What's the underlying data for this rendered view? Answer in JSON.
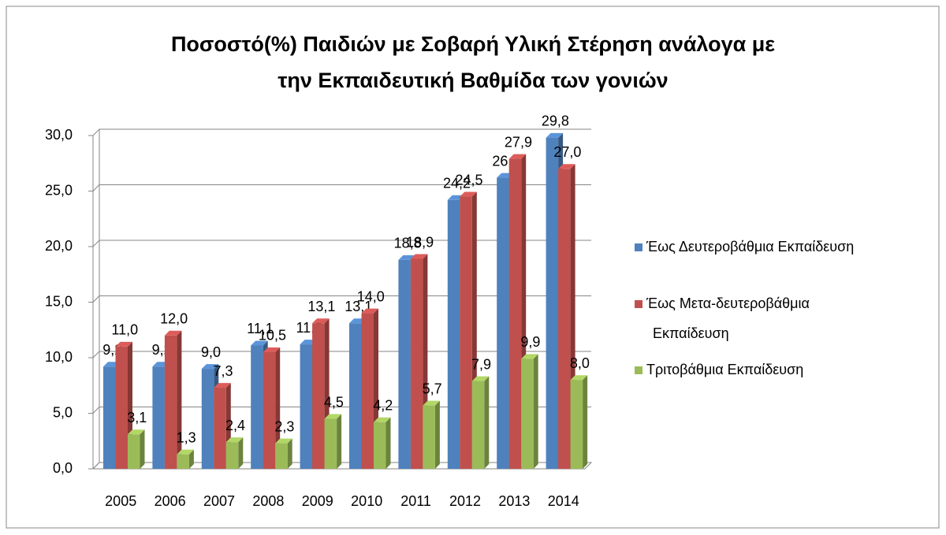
{
  "chart_data": {
    "type": "bar3d",
    "title": "Ποσοστό(%) Παιδιών με Σοβαρή Υλική Στέρηση ανάλογα με την Εκπαιδευτική Βαθμίδα των γονιών",
    "categories": [
      "2005",
      "2006",
      "2007",
      "2008",
      "2009",
      "2010",
      "2011",
      "2012",
      "2013",
      "2014"
    ],
    "series": [
      {
        "name": "Έως Δευτεροβάθμια Εκπαίδευση",
        "color": "#4f81bd",
        "values": [
          9.2,
          9.2,
          9.0,
          11.1,
          11.2,
          13.1,
          18.8,
          24.2,
          26.2,
          29.8
        ],
        "value_labels": [
          "9,2",
          "9,2",
          "9,0",
          "11,1",
          "11,2",
          "13,1",
          "18,8",
          "24,2",
          "26,2",
          "29,8"
        ]
      },
      {
        "name": "Έως Μετα-δευτεροβάθμια Εκπαίδευση",
        "color": "#c0504d",
        "values": [
          11.0,
          12.0,
          7.3,
          10.5,
          13.1,
          14.0,
          18.9,
          24.5,
          27.9,
          27.0
        ],
        "value_labels": [
          "11,0",
          "12,0",
          "7,3",
          "10,5",
          "13,1",
          "14,0",
          "18,9",
          "24,5",
          "27,9",
          "27,0"
        ]
      },
      {
        "name": "Τριτοβάθμια Εκπαίδευση",
        "color": "#9bbb59",
        "values": [
          3.1,
          1.3,
          2.4,
          2.3,
          4.5,
          4.2,
          5.7,
          7.9,
          9.9,
          8.0
        ],
        "value_labels": [
          "3,1",
          "1,3",
          "2,4",
          "2,3",
          "4,5",
          "4,2",
          "5,7",
          "7,9",
          "9,9",
          "8,0"
        ]
      }
    ],
    "ylim": [
      0,
      30
    ],
    "yticks": [
      {
        "value": 0,
        "label": "0,0"
      },
      {
        "value": 5,
        "label": "5,0"
      },
      {
        "value": 10,
        "label": "10,0"
      },
      {
        "value": 15,
        "label": "15,0"
      },
      {
        "value": 20,
        "label": "20,0"
      },
      {
        "value": 25,
        "label": "25,0"
      },
      {
        "value": 30,
        "label": "30,0"
      }
    ],
    "grid": true,
    "legend": "right"
  }
}
